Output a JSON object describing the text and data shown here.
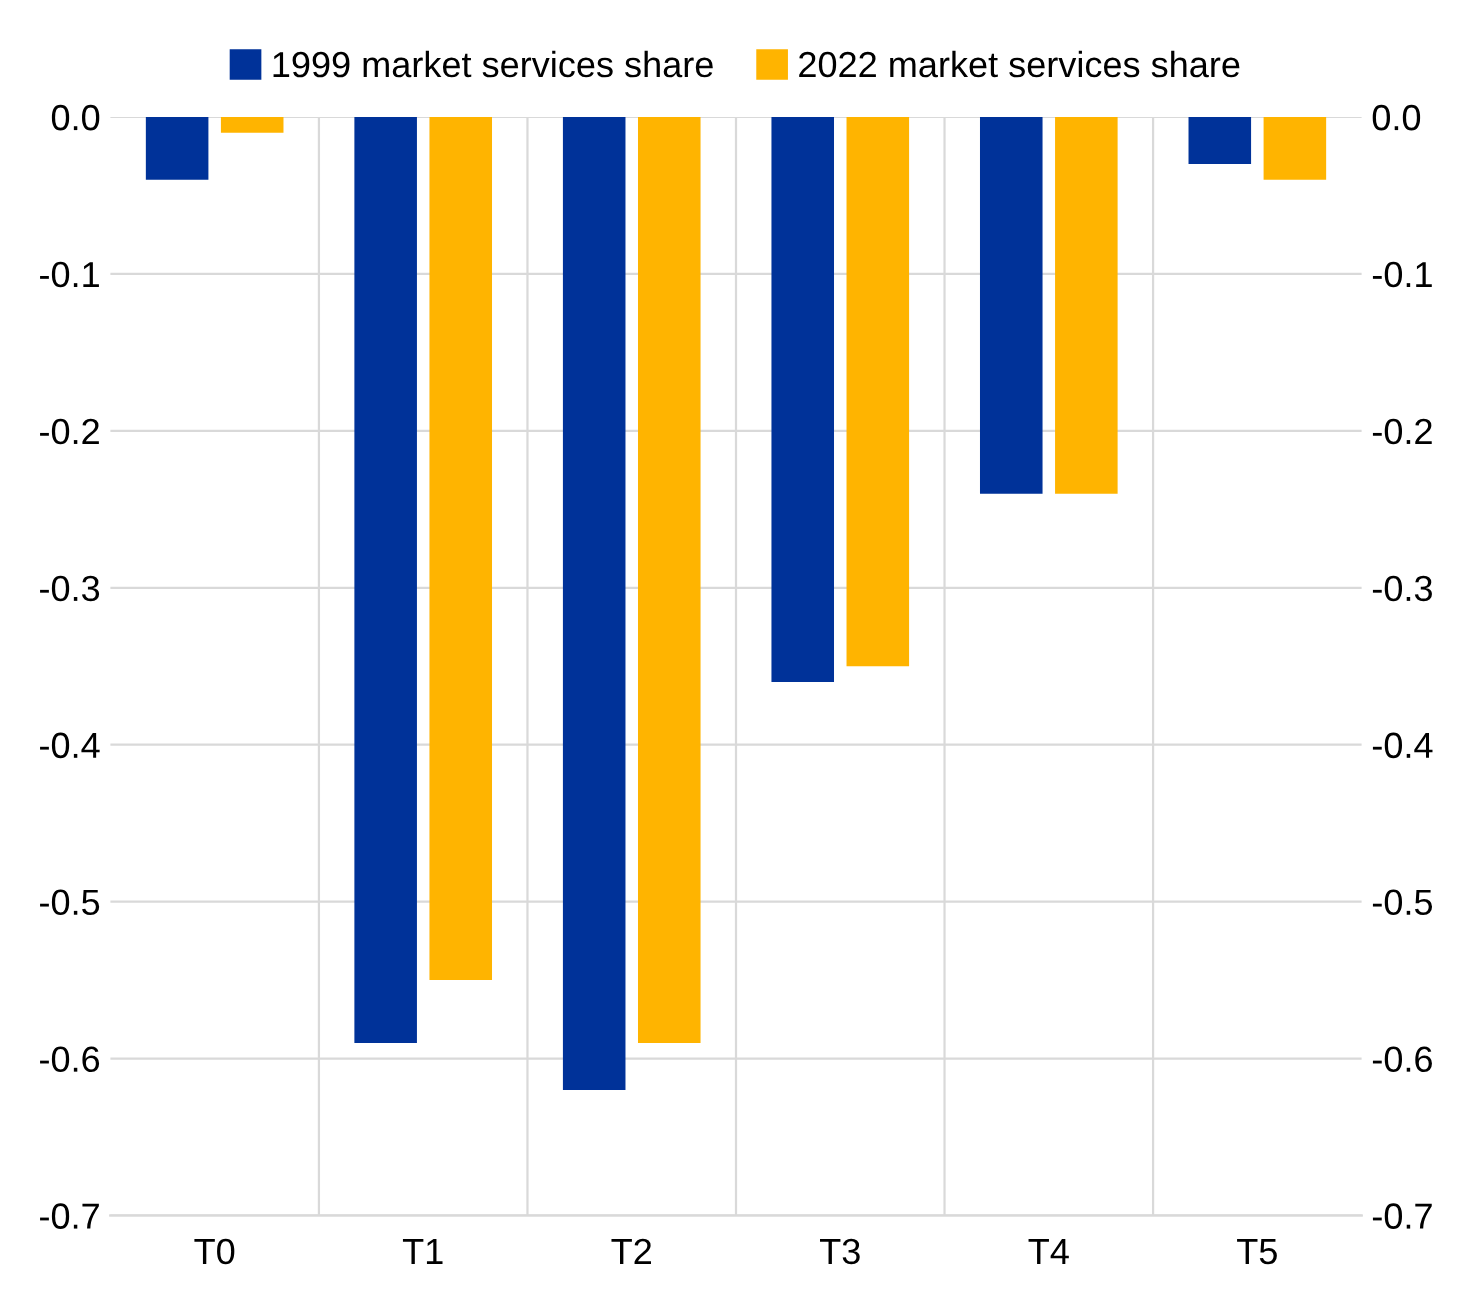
{
  "chart_data": {
    "type": "bar",
    "categories": [
      "T0",
      "T1",
      "T2",
      "T3",
      "T4",
      "T5"
    ],
    "series": [
      {
        "name": "1999 market services share",
        "color": "#003299",
        "values": [
          -0.04,
          -0.59,
          -0.62,
          -0.36,
          -0.24,
          -0.03
        ]
      },
      {
        "name": "2022 market services share",
        "color": "#ffb400",
        "values": [
          -0.01,
          -0.55,
          -0.59,
          -0.35,
          -0.24,
          -0.04
        ]
      }
    ],
    "ylim": [
      -0.7,
      0.0
    ],
    "yticks": [
      {
        "value": 0.0,
        "label": "0.0"
      },
      {
        "value": -0.1,
        "label": "-0.1"
      },
      {
        "value": -0.2,
        "label": "-0.2"
      },
      {
        "value": -0.3,
        "label": "-0.3"
      },
      {
        "value": -0.4,
        "label": "-0.4"
      },
      {
        "value": -0.5,
        "label": "-0.5"
      },
      {
        "value": -0.6,
        "label": "-0.6"
      },
      {
        "value": -0.7,
        "label": "-0.7"
      }
    ],
    "y2lim": [
      -0.7,
      0.0
    ],
    "y2ticks": [
      {
        "value": 0.0,
        "label": "0.0"
      },
      {
        "value": -0.1,
        "label": "-0.1"
      },
      {
        "value": -0.2,
        "label": "-0.2"
      },
      {
        "value": -0.3,
        "label": "-0.3"
      },
      {
        "value": -0.4,
        "label": "-0.4"
      },
      {
        "value": -0.5,
        "label": "-0.5"
      },
      {
        "value": -0.6,
        "label": "-0.6"
      },
      {
        "value": -0.7,
        "label": "-0.7"
      }
    ],
    "grid": true,
    "legend": "top"
  }
}
